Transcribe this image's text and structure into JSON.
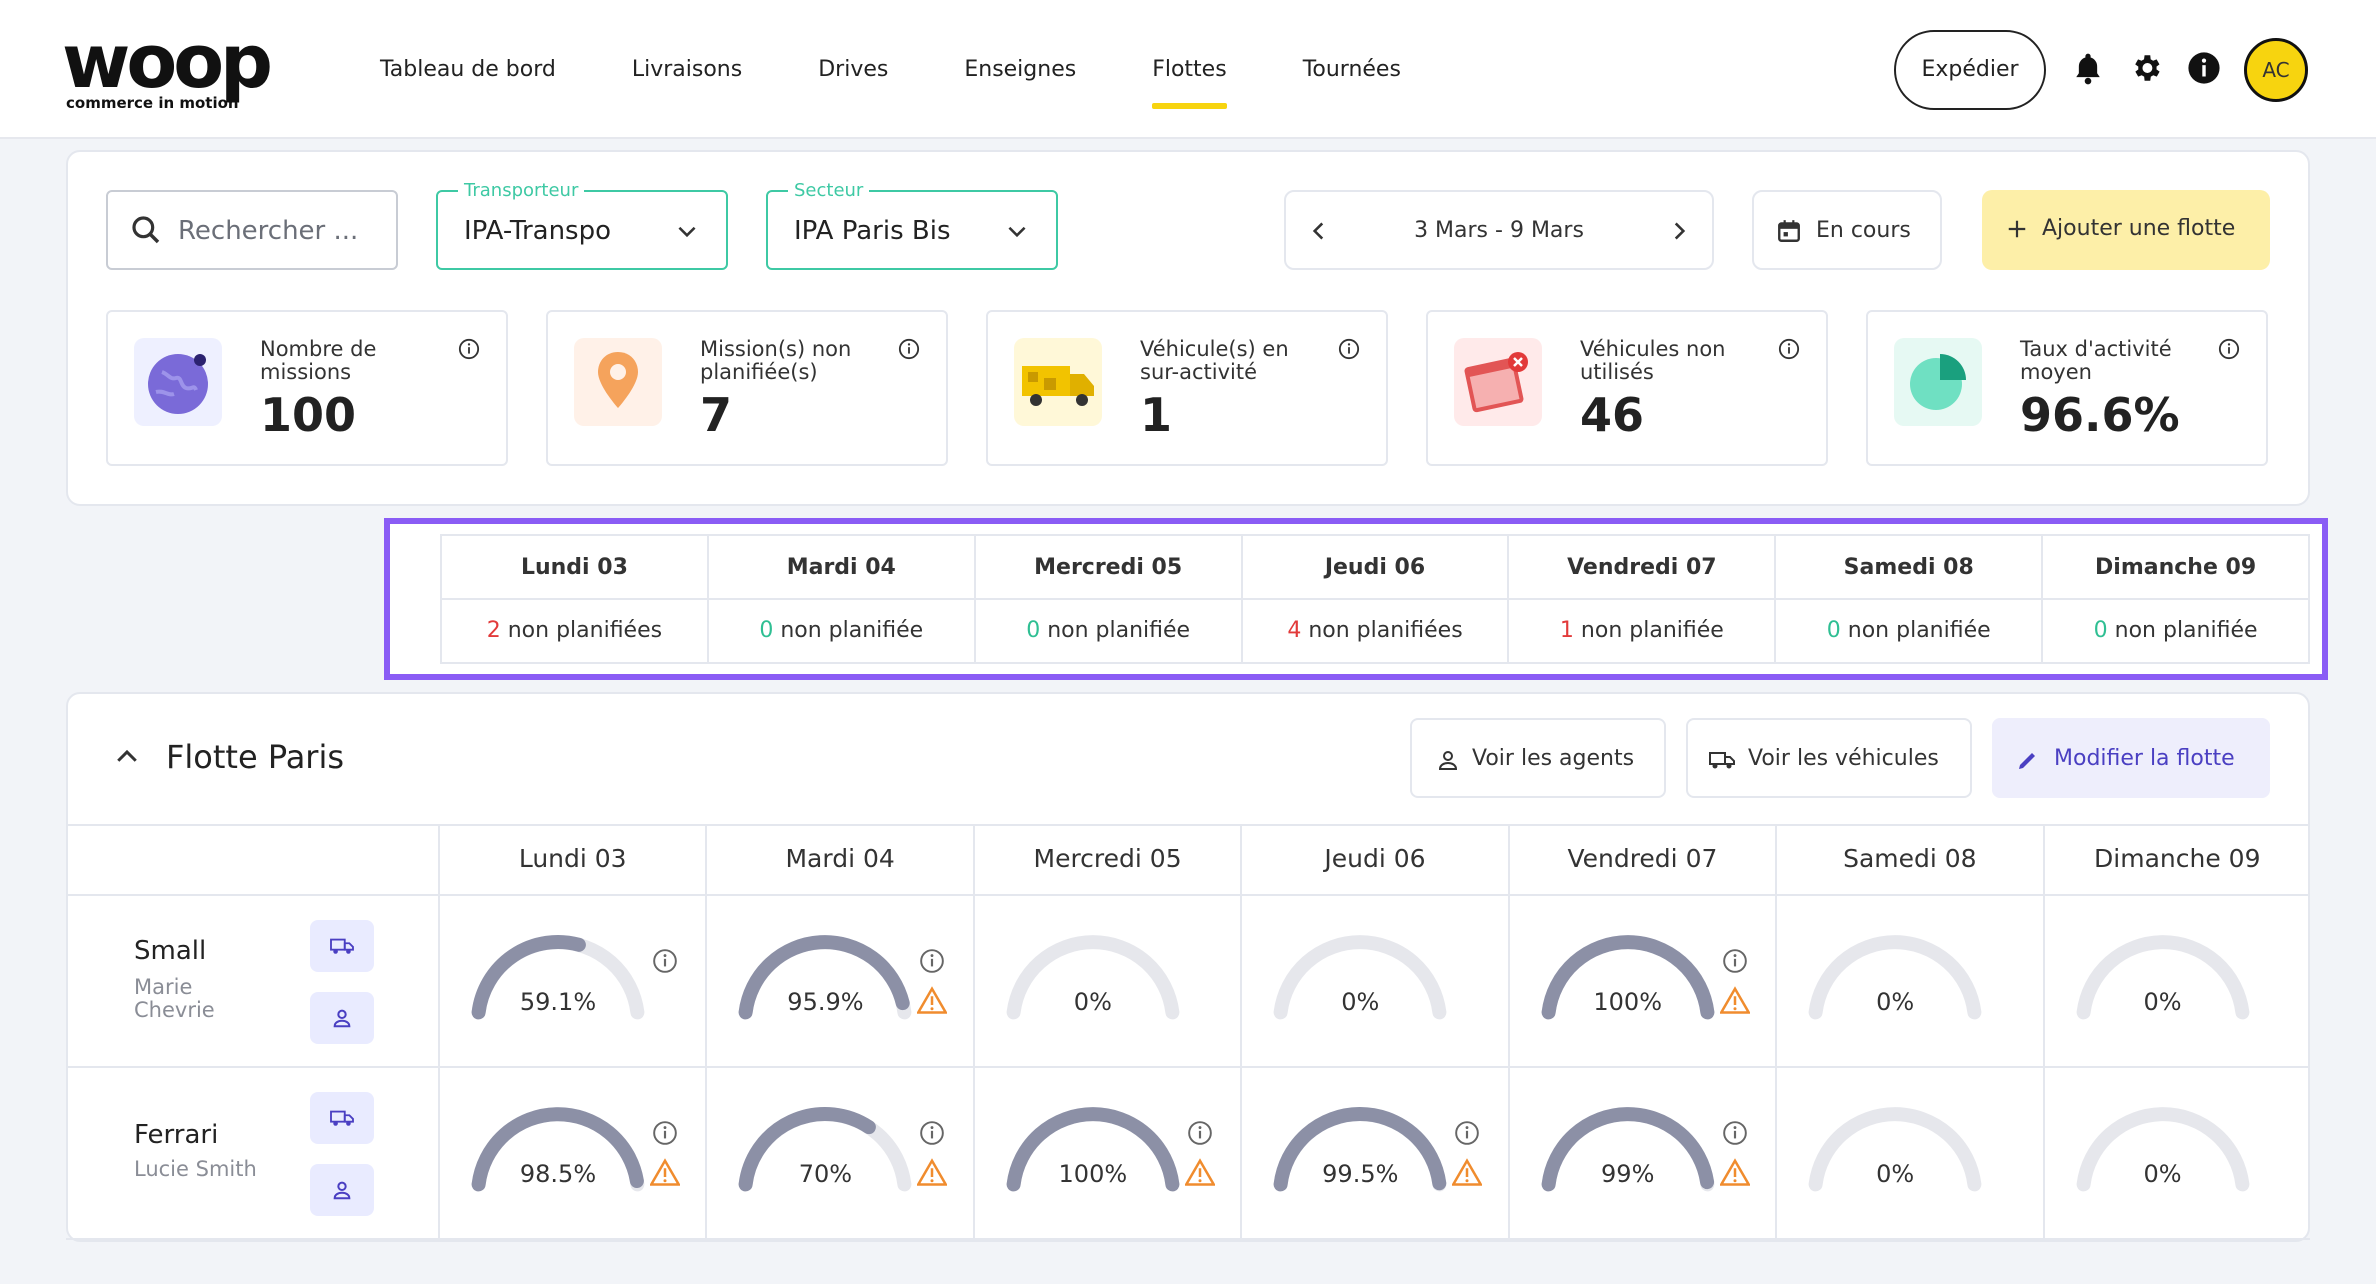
{
  "brand": {
    "name": "woop",
    "tagline": "commerce in motion"
  },
  "nav": {
    "items": [
      {
        "label": "Tableau de bord",
        "active": false
      },
      {
        "label": "Livraisons",
        "active": false
      },
      {
        "label": "Drives",
        "active": false
      },
      {
        "label": "Enseignes",
        "active": false
      },
      {
        "label": "Flottes",
        "active": true
      },
      {
        "label": "Tournées",
        "active": false
      }
    ],
    "expedier_label": "Expédier",
    "avatar_initials": "AC",
    "accent": "#f7d40f"
  },
  "filters": {
    "search_placeholder": "Rechercher ...",
    "transporteur": {
      "legend": "Transporteur",
      "value": "IPA-Transpo"
    },
    "secteur": {
      "legend": "Secteur",
      "value": "IPA Paris Bis"
    },
    "date_range": "3 Mars - 9 Mars",
    "status_label": "En cours",
    "add_label": "Ajouter une flotte"
  },
  "kpis": [
    {
      "label": "Nombre de missions",
      "value": "100",
      "icon": "globe-icon"
    },
    {
      "label": "Mission(s) non planifiée(s)",
      "value": "7",
      "icon": "location-pin-icon"
    },
    {
      "label": "Véhicule(s) en sur-activité",
      "value": "1",
      "icon": "truck-icon"
    },
    {
      "label": "Véhicules non utilisés",
      "value": "46",
      "icon": "calendar-x-icon"
    },
    {
      "label": "Taux d'activité moyen",
      "value": "96.6%",
      "icon": "pie-chart-icon"
    }
  ],
  "week": [
    {
      "day": "Lundi 03",
      "count": "2",
      "text": " non planifiées",
      "color": "#e23a3a"
    },
    {
      "day": "Mardi 04",
      "count": "0",
      "text": " non planifiée",
      "color": "#2fbf93"
    },
    {
      "day": "Mercredi 05",
      "count": "0",
      "text": " non planifiée",
      "color": "#2fbf93"
    },
    {
      "day": "Jeudi 06",
      "count": "4",
      "text": " non planifiées",
      "color": "#e23a3a"
    },
    {
      "day": "Vendredi 07",
      "count": "1",
      "text": " non planifiée",
      "color": "#e23a3a"
    },
    {
      "day": "Samedi 08",
      "count": "0",
      "text": " non planifiée",
      "color": "#2fbf93"
    },
    {
      "day": "Dimanche 09",
      "count": "0",
      "text": " non planifiée",
      "color": "#2fbf93"
    }
  ],
  "fleet": {
    "title": "Flotte Paris",
    "btn_agents": "Voir les agents",
    "btn_vehicles": "Voir les véhicules",
    "btn_edit": "Modifier la flotte",
    "days": [
      "Lundi 03",
      "Mardi 04",
      "Mercredi 05",
      "Jeudi 06",
      "Vendredi 07",
      "Samedi 08",
      "Dimanche 09"
    ],
    "vehicles": [
      {
        "name": "Small",
        "agent": "Marie Chevrie",
        "agent_lines": [
          "Marie",
          "Chevrie"
        ],
        "days": [
          {
            "label": "59.1%",
            "pct": 59.1,
            "info": true,
            "warn": false
          },
          {
            "label": "95.9%",
            "pct": 95.9,
            "info": true,
            "warn": true
          },
          {
            "label": "0%",
            "pct": 0,
            "info": false,
            "warn": false
          },
          {
            "label": "0%",
            "pct": 0,
            "info": false,
            "warn": false
          },
          {
            "label": "100%",
            "pct": 100,
            "info": true,
            "warn": true
          },
          {
            "label": "0%",
            "pct": 0,
            "info": false,
            "warn": false
          },
          {
            "label": "0%",
            "pct": 0,
            "info": false,
            "warn": false
          }
        ]
      },
      {
        "name": "Ferrari",
        "agent": "Lucie Smith",
        "agent_lines": [
          "Lucie Smith"
        ],
        "days": [
          {
            "label": "98.5%",
            "pct": 98.5,
            "info": true,
            "warn": true
          },
          {
            "label": "70%",
            "pct": 70,
            "info": true,
            "warn": true
          },
          {
            "label": "100%",
            "pct": 100,
            "info": true,
            "warn": true
          },
          {
            "label": "99.5%",
            "pct": 99.5,
            "info": true,
            "warn": true
          },
          {
            "label": "99%",
            "pct": 99,
            "info": true,
            "warn": true
          },
          {
            "label": "0%",
            "pct": 0,
            "info": false,
            "warn": false
          },
          {
            "label": "0%",
            "pct": 0,
            "info": false,
            "warn": false
          }
        ]
      }
    ]
  },
  "colors": {
    "gauge_fill": "#8c90a6",
    "gauge_track": "#e6e7ec",
    "warn": "#f08c2e",
    "selection_outline": "#8a5cf5"
  }
}
